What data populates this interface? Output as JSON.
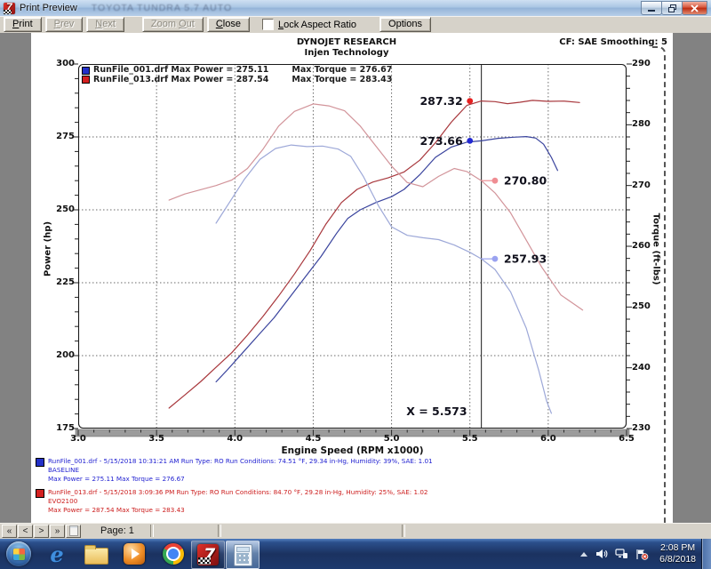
{
  "window": {
    "title": "Print Preview",
    "ghost_text": "TOYOTA  TUNDRA 5.7 AUTO"
  },
  "toolbar": {
    "print": {
      "pre": "",
      "key": "P",
      "post": "rint"
    },
    "prev": {
      "pre": "",
      "key": "P",
      "post": "rev"
    },
    "next": {
      "pre": "",
      "key": "N",
      "post": "ext"
    },
    "zoom_out": {
      "pre": "Zoom ",
      "key": "O",
      "post": "ut"
    },
    "close": {
      "pre": "",
      "key": "C",
      "post": "lose"
    },
    "lock": {
      "pre": "",
      "key": "L",
      "post": "ock Aspect Ratio"
    },
    "options": "Options"
  },
  "header": {
    "line1": "DYNOJET RESEARCH",
    "line2": "Injen Technology",
    "right": "CF: SAE  Smoothing: 5"
  },
  "legend": {
    "rows": [
      {
        "file": "RunFile_001.drf",
        "power": "Max Power = 275.11",
        "torque": "Max Torque = 276.67",
        "color": "#2330c8"
      },
      {
        "file": "RunFile_013.drf",
        "power": "Max Power = 287.54",
        "torque": "Max Torque = 283.43",
        "color": "#d42020"
      }
    ]
  },
  "chart_data": {
    "type": "line",
    "title": "DYNOJET RESEARCH — Injen Technology",
    "xlabel": "Engine Speed (RPM x1000)",
    "ylabel_left": "Power (hp)",
    "ylabel_right": "Torque (ft-lbs)",
    "xlim": [
      3.0,
      6.5
    ],
    "ylim_left": [
      175,
      300
    ],
    "ylim_right": [
      230,
      290
    ],
    "x_ticks": [
      "3.0",
      "3.5",
      "4.0",
      "4.5",
      "5.0",
      "5.5",
      "6.0",
      "6.5"
    ],
    "y_ticks_left": [
      "300",
      "275",
      "250",
      "225",
      "200",
      "175"
    ],
    "y_ticks_right": [
      "290",
      "280",
      "270",
      "260",
      "250",
      "240",
      "230"
    ],
    "grid_x": [
      3.5,
      4.0,
      4.5,
      5.0,
      5.5,
      6.0
    ],
    "grid_y_hp": [
      200,
      225,
      250,
      275
    ],
    "grid_on": true,
    "legend_position": "top-left",
    "cursor_x": 5.573,
    "cursor_label": "X = 5.573",
    "series": [
      {
        "name": "RunFile_013 Power",
        "axis": "left",
        "color": "#a8373c",
        "points": [
          [
            3.58,
            182
          ],
          [
            3.68,
            186.5
          ],
          [
            3.78,
            191
          ],
          [
            3.88,
            196
          ],
          [
            3.98,
            201
          ],
          [
            4.08,
            207
          ],
          [
            4.18,
            213.5
          ],
          [
            4.28,
            220.5
          ],
          [
            4.38,
            228
          ],
          [
            4.48,
            236
          ],
          [
            4.58,
            245
          ],
          [
            4.68,
            252.5
          ],
          [
            4.78,
            257
          ],
          [
            4.88,
            259.5
          ],
          [
            4.98,
            261
          ],
          [
            5.08,
            263
          ],
          [
            5.18,
            267
          ],
          [
            5.28,
            273
          ],
          [
            5.38,
            280
          ],
          [
            5.48,
            285.8
          ],
          [
            5.573,
            287.32
          ],
          [
            5.66,
            287.1
          ],
          [
            5.74,
            286.4
          ],
          [
            5.82,
            286.9
          ],
          [
            5.9,
            287.54
          ],
          [
            6.0,
            287.2
          ],
          [
            6.1,
            287.3
          ],
          [
            6.2,
            286.8
          ]
        ]
      },
      {
        "name": "RunFile_001 Power",
        "axis": "left",
        "color": "#39439d",
        "points": [
          [
            3.88,
            191
          ],
          [
            3.95,
            195
          ],
          [
            4.05,
            201
          ],
          [
            4.15,
            207
          ],
          [
            4.25,
            213
          ],
          [
            4.35,
            220
          ],
          [
            4.45,
            227
          ],
          [
            4.55,
            234
          ],
          [
            4.65,
            242
          ],
          [
            4.72,
            247
          ],
          [
            4.8,
            250
          ],
          [
            4.9,
            252.5
          ],
          [
            5.0,
            254.5
          ],
          [
            5.08,
            257
          ],
          [
            5.18,
            262
          ],
          [
            5.28,
            268
          ],
          [
            5.38,
            271.5
          ],
          [
            5.48,
            273.2
          ],
          [
            5.573,
            273.66
          ],
          [
            5.68,
            274.5
          ],
          [
            5.78,
            274.9
          ],
          [
            5.86,
            275.11
          ],
          [
            5.92,
            274.6
          ],
          [
            5.97,
            272.5
          ],
          [
            6.02,
            268
          ],
          [
            6.06,
            263.5
          ]
        ]
      },
      {
        "name": "RunFile_013 Torque",
        "axis": "right",
        "color": "#d2949a",
        "points": [
          [
            3.58,
            267.6
          ],
          [
            3.68,
            268.6
          ],
          [
            3.78,
            269.3
          ],
          [
            3.88,
            270
          ],
          [
            3.98,
            270.9
          ],
          [
            4.08,
            272.8
          ],
          [
            4.18,
            276
          ],
          [
            4.28,
            279.8
          ],
          [
            4.38,
            282.2
          ],
          [
            4.5,
            283.43
          ],
          [
            4.6,
            283.1
          ],
          [
            4.7,
            282.3
          ],
          [
            4.8,
            279.8
          ],
          [
            4.9,
            276.5
          ],
          [
            5.0,
            273.2
          ],
          [
            5.1,
            270.5
          ],
          [
            5.2,
            269.8
          ],
          [
            5.3,
            271.5
          ],
          [
            5.4,
            272.8
          ],
          [
            5.48,
            272.3
          ],
          [
            5.573,
            270.8
          ],
          [
            5.66,
            268.8
          ],
          [
            5.76,
            265.5
          ],
          [
            5.86,
            261
          ],
          [
            5.96,
            256.5
          ],
          [
            6.08,
            252
          ],
          [
            6.22,
            249.5
          ]
        ]
      },
      {
        "name": "RunFile_001 Torque",
        "axis": "right",
        "color": "#9da8d8",
        "points": [
          [
            3.88,
            263.8
          ],
          [
            3.96,
            267
          ],
          [
            4.06,
            271
          ],
          [
            4.16,
            274.3
          ],
          [
            4.26,
            276.1
          ],
          [
            4.36,
            276.67
          ],
          [
            4.46,
            276.4
          ],
          [
            4.56,
            276.5
          ],
          [
            4.66,
            276
          ],
          [
            4.74,
            274.8
          ],
          [
            4.82,
            271.5
          ],
          [
            4.92,
            266.5
          ],
          [
            5.0,
            263.2
          ],
          [
            5.1,
            261.8
          ],
          [
            5.2,
            261.4
          ],
          [
            5.3,
            261.1
          ],
          [
            5.4,
            260.2
          ],
          [
            5.5,
            259
          ],
          [
            5.573,
            257.93
          ],
          [
            5.66,
            256.2
          ],
          [
            5.76,
            252.5
          ],
          [
            5.86,
            246.5
          ],
          [
            5.94,
            239.5
          ],
          [
            5.99,
            234.5
          ],
          [
            6.02,
            232.5
          ]
        ]
      }
    ],
    "markers": [
      {
        "label": "287.32",
        "x": 5.5,
        "y": 287.32,
        "axis": "left",
        "color": "#e62020",
        "side": "left",
        "leader": false
      },
      {
        "label": "273.66",
        "x": 5.5,
        "y": 273.66,
        "axis": "left",
        "color": "#2228d2",
        "side": "left",
        "leader": false
      },
      {
        "label": "270.80",
        "x": 5.66,
        "y": 270.8,
        "axis": "right",
        "color": "#ef8d93",
        "side": "right",
        "leader": true
      },
      {
        "label": "257.93",
        "x": 5.66,
        "y": 257.93,
        "axis": "right",
        "color": "#9aa2f0",
        "side": "right",
        "leader": true
      }
    ]
  },
  "runs": [
    {
      "line1": "RunFile_001.drf - 5/15/2018 10:31:21 AM  Run Type: RO  Run Conditions: 74.51 °F, 29.34 in-Hg,  Humidity:  39%, SAE: 1.01",
      "line2": "BASELINE",
      "line3": "Max Power = 275.11  Max Torque = 276.67"
    },
    {
      "line1": "RunFile_013.drf - 5/15/2018 3:09:36 PM  Run Type: RO  Run Conditions: 84.70 °F, 29.28 in-Hg,  Humidity:  25%, SAE: 1.02",
      "line2": "EVO2100",
      "line3": "Max Power = 287.54  Max Torque = 283.43"
    }
  ],
  "statusbar": {
    "nav": [
      "«",
      "<",
      ">",
      "»"
    ],
    "page_label": "Page: 1"
  },
  "taskbar": {
    "dynojet_glyph": "7",
    "clock_time": "2:08 PM",
    "clock_date": "6/8/2018"
  }
}
